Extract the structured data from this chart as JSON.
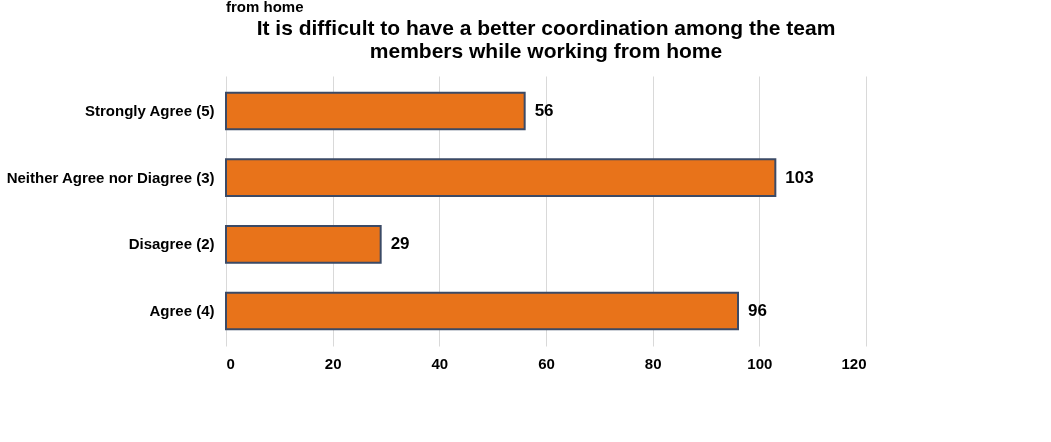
{
  "chart_data": {
    "type": "bar",
    "orientation": "horizontal",
    "title": [
      "It is difficult to have a better coordination among the team",
      "members while working from home"
    ],
    "annotations": [
      "from home"
    ],
    "categories": [
      "Strongly Agree (5)",
      "Neither Agree nor Diagree (3)",
      "Disagree (2)",
      "Agree (4)"
    ],
    "values": [
      56,
      103,
      29,
      96
    ],
    "color": "#e8731a",
    "xlim": [
      0,
      120
    ],
    "xticks": [
      0,
      20,
      40,
      60,
      80,
      100,
      120
    ],
    "grid": "x",
    "data_labels": true
  }
}
